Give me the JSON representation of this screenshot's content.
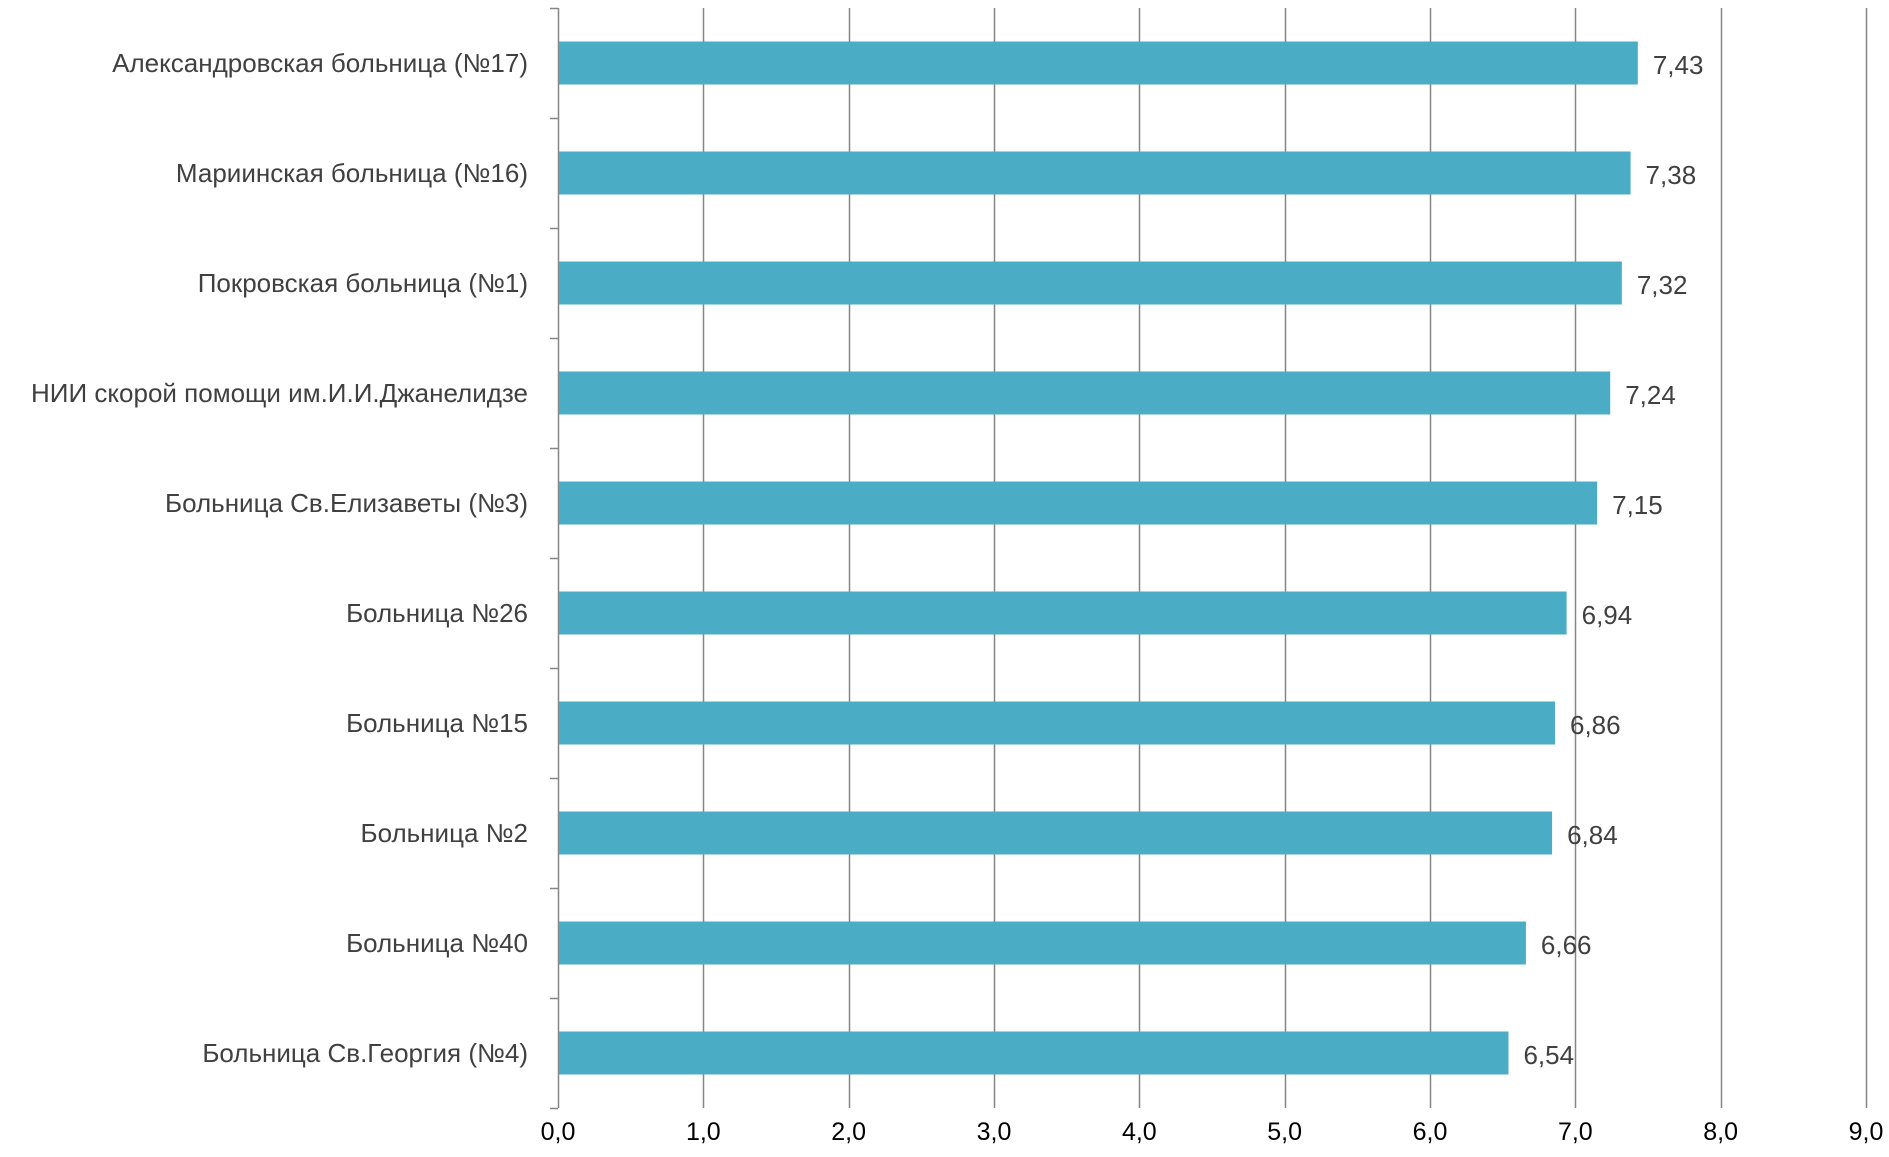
{
  "chart_data": {
    "type": "bar",
    "orientation": "horizontal",
    "categories": [
      "Александровская больница (№17)",
      "Мариинская больница (№16)",
      "Покровская больница (№1)",
      "НИИ скорой помощи им.И.И.Джанелидзе",
      "Больница Св.Елизаветы (№3)",
      "Больница №26",
      "Больница №15",
      "Больница №2",
      "Больница №40",
      "Больница Св.Георгия (№4)"
    ],
    "values": [
      7.43,
      7.38,
      7.32,
      7.24,
      7.15,
      6.94,
      6.86,
      6.84,
      6.66,
      6.54
    ],
    "value_labels": [
      "7,43",
      "7,38",
      "7,32",
      "7,24",
      "7,15",
      "6,94",
      "6,86",
      "6,84",
      "6,66",
      "6,54"
    ],
    "xlim": [
      0,
      9
    ],
    "x_ticks": [
      0,
      1,
      2,
      3,
      4,
      5,
      6,
      7,
      8,
      9
    ],
    "x_tick_labels": [
      "0,0",
      "1,0",
      "2,0",
      "3,0",
      "4,0",
      "5,0",
      "6,0",
      "7,0",
      "8,0",
      "9,0"
    ],
    "title": "",
    "xlabel": "",
    "ylabel": "",
    "grid": "vertical",
    "legend": "none",
    "colors": {
      "bar": "#4bacc6",
      "grid": "#868686",
      "axis": "#868686",
      "category_text": "#404040",
      "tick_text": "#000000",
      "data_label_text": "#404040"
    }
  }
}
